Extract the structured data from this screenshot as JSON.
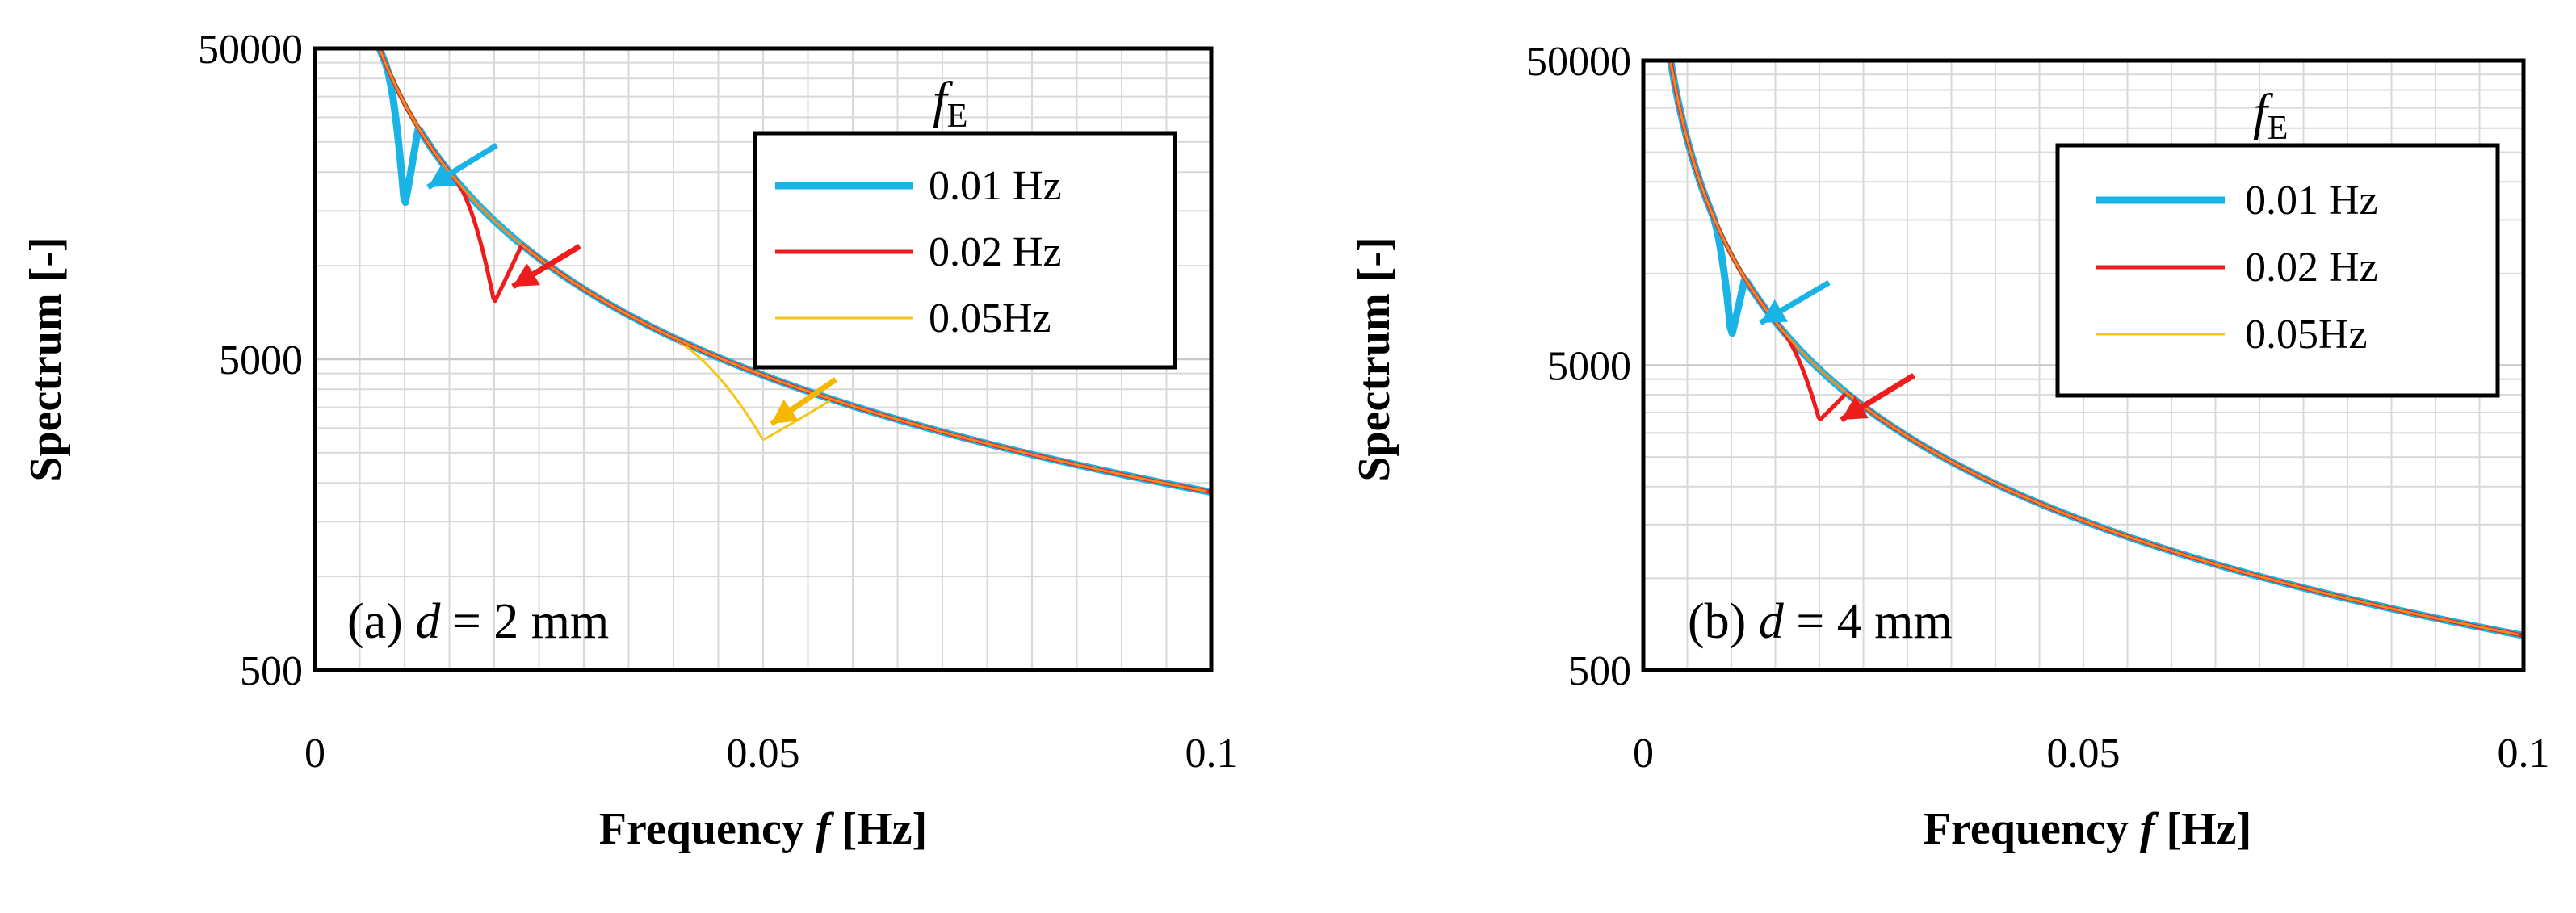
{
  "chart_data": [
    {
      "type": "line",
      "panel_label": {
        "prefix": "(a) ",
        "var": "d",
        "rest": " = 2 mm"
      },
      "xlabel": {
        "prefix": "Frequency ",
        "var": "f",
        "suffix": " [Hz]"
      },
      "ylabel": "Spectrum [-]",
      "xlim": [
        0,
        0.1
      ],
      "ylim": [
        500,
        50000
      ],
      "yscale": "log",
      "x_ticks": [
        0,
        0.05,
        0.1
      ],
      "x_tick_labels": [
        "0",
        "0.05",
        "0.1"
      ],
      "y_ticks": [
        500,
        5000,
        50000
      ],
      "y_tick_labels": [
        "500",
        "5000",
        "50000"
      ],
      "grid": true,
      "legend": {
        "title_main": "f",
        "title_sub": "E",
        "placement": "top-right",
        "entries": [
          "0.01 Hz",
          "0.02 Hz",
          "0.05Hz"
        ]
      },
      "base_curve": {
        "amplitude": 105,
        "exponent": -1.25
      },
      "series": [
        {
          "name": "0.01 Hz",
          "color": "#19b3e6",
          "width": 9,
          "peak_x": 0.01,
          "peak_y": 15400
        },
        {
          "name": "0.02 Hz",
          "color": "#ee1c1c",
          "width": 5,
          "peak_x": 0.02,
          "peak_y": 7600
        },
        {
          "name": "0.05Hz",
          "color": "#f5c518",
          "width": 3,
          "peak_x": 0.05,
          "peak_y": 2750
        }
      ],
      "fill_color": "#2aa37a",
      "annotations": [
        {
          "target_series": "0.01 Hz",
          "color": "#19b3e6"
        },
        {
          "target_series": "0.02 Hz",
          "color": "#ee1c1c"
        },
        {
          "target_series": "0.05Hz",
          "color": "#f5b700"
        }
      ]
    },
    {
      "type": "line",
      "panel_label": {
        "prefix": "(b) ",
        "var": "d",
        "rest": " = 4 mm"
      },
      "xlabel": {
        "prefix": "Frequency ",
        "var": "f",
        "suffix": " [Hz]"
      },
      "ylabel": "Spectrum [-]",
      "xlim": [
        0,
        0.1
      ],
      "ylim": [
        500,
        50000
      ],
      "yscale": "log",
      "x_ticks": [
        0,
        0.05,
        0.1
      ],
      "x_tick_labels": [
        "0",
        "0.05",
        "0.1"
      ],
      "y_ticks": [
        500,
        5000,
        50000
      ],
      "y_tick_labels": [
        "500",
        "5000",
        "50000"
      ],
      "grid": true,
      "legend": {
        "title_main": "f",
        "title_sub": "E",
        "placement": "top-right",
        "entries": [
          "0.01 Hz",
          "0.02 Hz",
          "0.05Hz"
        ]
      },
      "base_curve": {
        "amplitude": 36.5,
        "exponent": -1.25
      },
      "series": [
        {
          "name": "0.01 Hz",
          "color": "#19b3e6",
          "width": 9,
          "peak_x": 0.01,
          "peak_y": 6200
        },
        {
          "name": "0.02 Hz",
          "color": "#ee1c1c",
          "width": 5,
          "peak_x": 0.02,
          "peak_y": 3300
        },
        {
          "name": "0.05Hz",
          "color": "#f5c518",
          "width": 3,
          "peak_x": null,
          "peak_y": null
        }
      ],
      "fill_color": "#2aa37a",
      "annotations": [
        {
          "target_series": "0.01 Hz",
          "color": "#19b3e6"
        },
        {
          "target_series": "0.02 Hz",
          "color": "#ee1c1c"
        }
      ]
    }
  ]
}
